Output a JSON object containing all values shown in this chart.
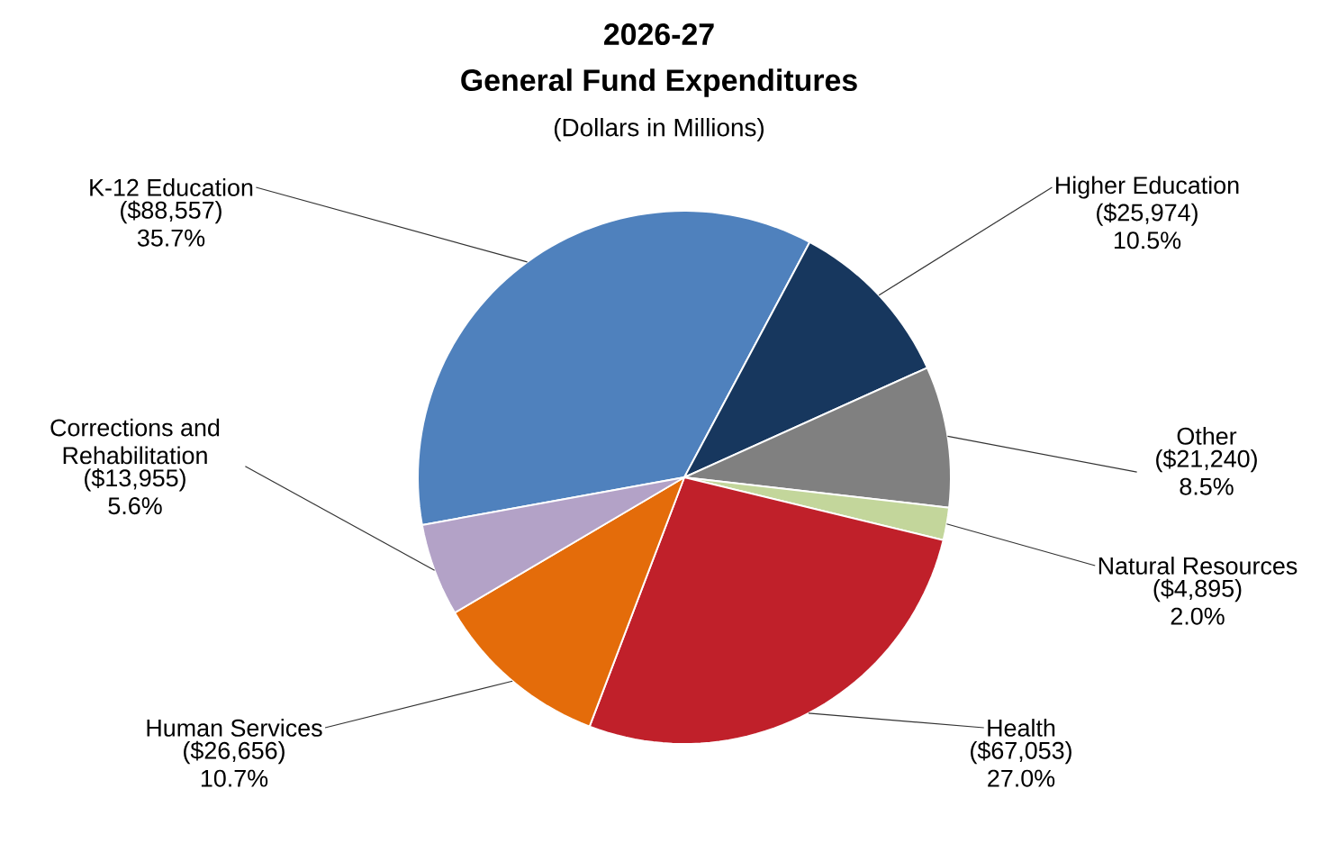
{
  "chart_data": {
    "type": "pie",
    "title": "2026-27",
    "subtitle": "General Fund Expenditures",
    "annotations": [
      "(Dollars in Millions)"
    ],
    "categories": [
      "K-12 Education",
      "Higher Education",
      "Other",
      "Natural Resources",
      "Health",
      "Human Services",
      "Corrections and Rehabilitation"
    ],
    "values": [
      88557,
      25974,
      21240,
      4895,
      67053,
      26656,
      13955
    ],
    "value_labels": [
      "($88,557) 35.7%",
      "($25,974) 10.5%",
      "($21,240) 8.5%",
      "($4,895) 2.0%",
      "($67,053) 27.0%",
      "($26,656) 10.7%",
      "($13,955) 5.6%"
    ],
    "colors": [
      "#4f81bd",
      "#17375e",
      "#808080",
      "#c3d69b",
      "#c0202a",
      "#e46c0a",
      "#b3a2c7"
    ]
  }
}
